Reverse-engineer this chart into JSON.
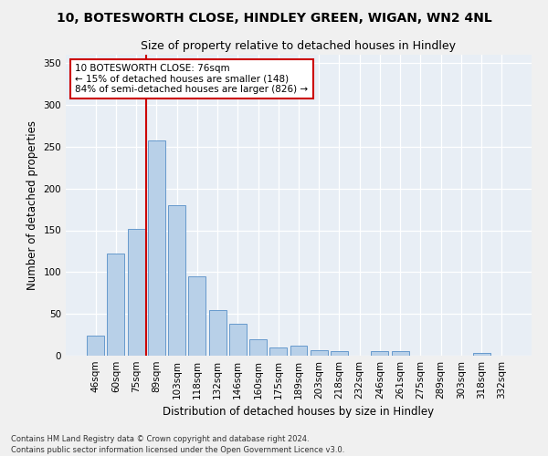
{
  "title": "10, BOTESWORTH CLOSE, HINDLEY GREEN, WIGAN, WN2 4NL",
  "subtitle": "Size of property relative to detached houses in Hindley",
  "xlabel": "Distribution of detached houses by size in Hindley",
  "ylabel": "Number of detached properties",
  "categories": [
    "46sqm",
    "60sqm",
    "75sqm",
    "89sqm",
    "103sqm",
    "118sqm",
    "132sqm",
    "146sqm",
    "160sqm",
    "175sqm",
    "189sqm",
    "203sqm",
    "218sqm",
    "232sqm",
    "246sqm",
    "261sqm",
    "275sqm",
    "289sqm",
    "303sqm",
    "318sqm",
    "332sqm"
  ],
  "values": [
    24,
    122,
    152,
    257,
    180,
    95,
    55,
    38,
    20,
    10,
    12,
    7,
    6,
    0,
    5,
    5,
    0,
    0,
    0,
    3,
    0
  ],
  "bar_color": "#b8d0e8",
  "bar_edge_color": "#6699cc",
  "vline_x": 2.5,
  "vline_color": "#cc0000",
  "annotation_text": "10 BOTESWORTH CLOSE: 76sqm\n← 15% of detached houses are smaller (148)\n84% of semi-detached houses are larger (826) →",
  "annotation_box_color": "#ffffff",
  "annotation_box_edge": "#cc0000",
  "ylim": [
    0,
    360
  ],
  "yticks": [
    0,
    50,
    100,
    150,
    200,
    250,
    300,
    350
  ],
  "bg_color": "#e8eef5",
  "grid_color": "#ffffff",
  "fig_bg_color": "#f0f0f0",
  "footer": "Contains HM Land Registry data © Crown copyright and database right 2024.\nContains public sector information licensed under the Open Government Licence v3.0.",
  "title_fontsize": 10,
  "subtitle_fontsize": 9,
  "xlabel_fontsize": 8.5,
  "ylabel_fontsize": 8.5,
  "tick_fontsize": 7.5,
  "annot_fontsize": 7.5,
  "footer_fontsize": 6.0
}
